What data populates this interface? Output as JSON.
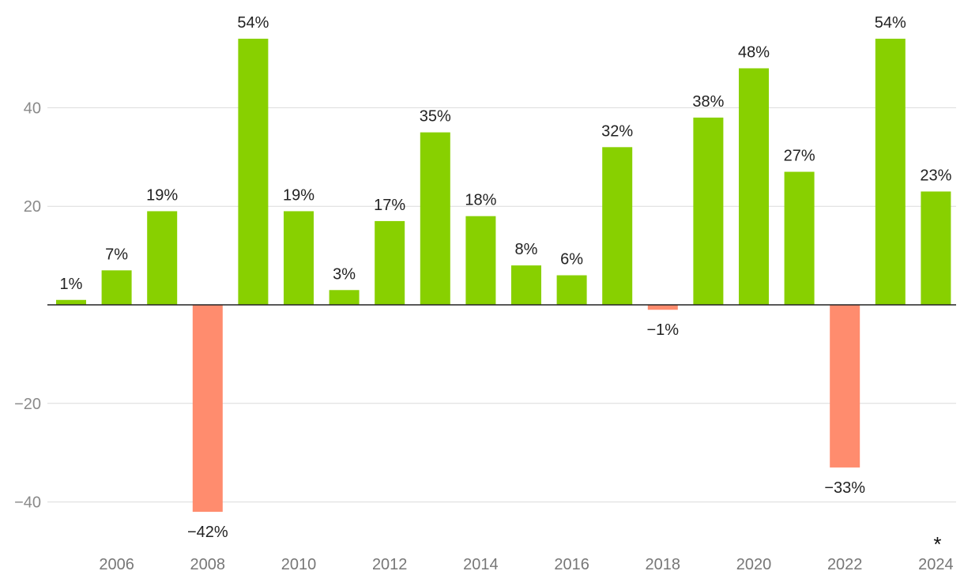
{
  "chart_data": {
    "type": "bar",
    "title": "",
    "xlabel": "",
    "ylabel": "",
    "ylim": [
      -48,
      54
    ],
    "yticks": [
      40,
      20,
      -20,
      -40
    ],
    "grid": true,
    "legend": "none",
    "colors": {
      "positive": "#88d000",
      "negative": "#ff8c6e",
      "zero_line": "#222222",
      "grid": "#dcdcdc"
    },
    "categories": [
      "2005",
      "2006",
      "2007",
      "2008",
      "2009",
      "2010",
      "2011",
      "2012",
      "2013",
      "2014",
      "2015",
      "2016",
      "2017",
      "2018",
      "2019",
      "2020",
      "2021",
      "2022",
      "2023",
      "2024"
    ],
    "x_tick_labels": [
      "",
      "2006",
      "",
      "2008",
      "",
      "2010",
      "",
      "2012",
      "",
      "2014",
      "",
      "2016",
      "",
      "2018",
      "",
      "2020",
      "",
      "2022",
      "",
      "2024"
    ],
    "values": [
      1,
      7,
      19,
      -42,
      54,
      19,
      3,
      17,
      35,
      18,
      8,
      6,
      32,
      -1,
      38,
      48,
      27,
      -33,
      54,
      23
    ],
    "data_labels": [
      "1%",
      "7%",
      "19%",
      "−42%",
      "54%",
      "19%",
      "3%",
      "17%",
      "35%",
      "18%",
      "8%",
      "6%",
      "32%",
      "−1%",
      "38%",
      "48%",
      "27%",
      "−33%",
      "54%",
      "23%"
    ],
    "footnote_marker": "*"
  }
}
